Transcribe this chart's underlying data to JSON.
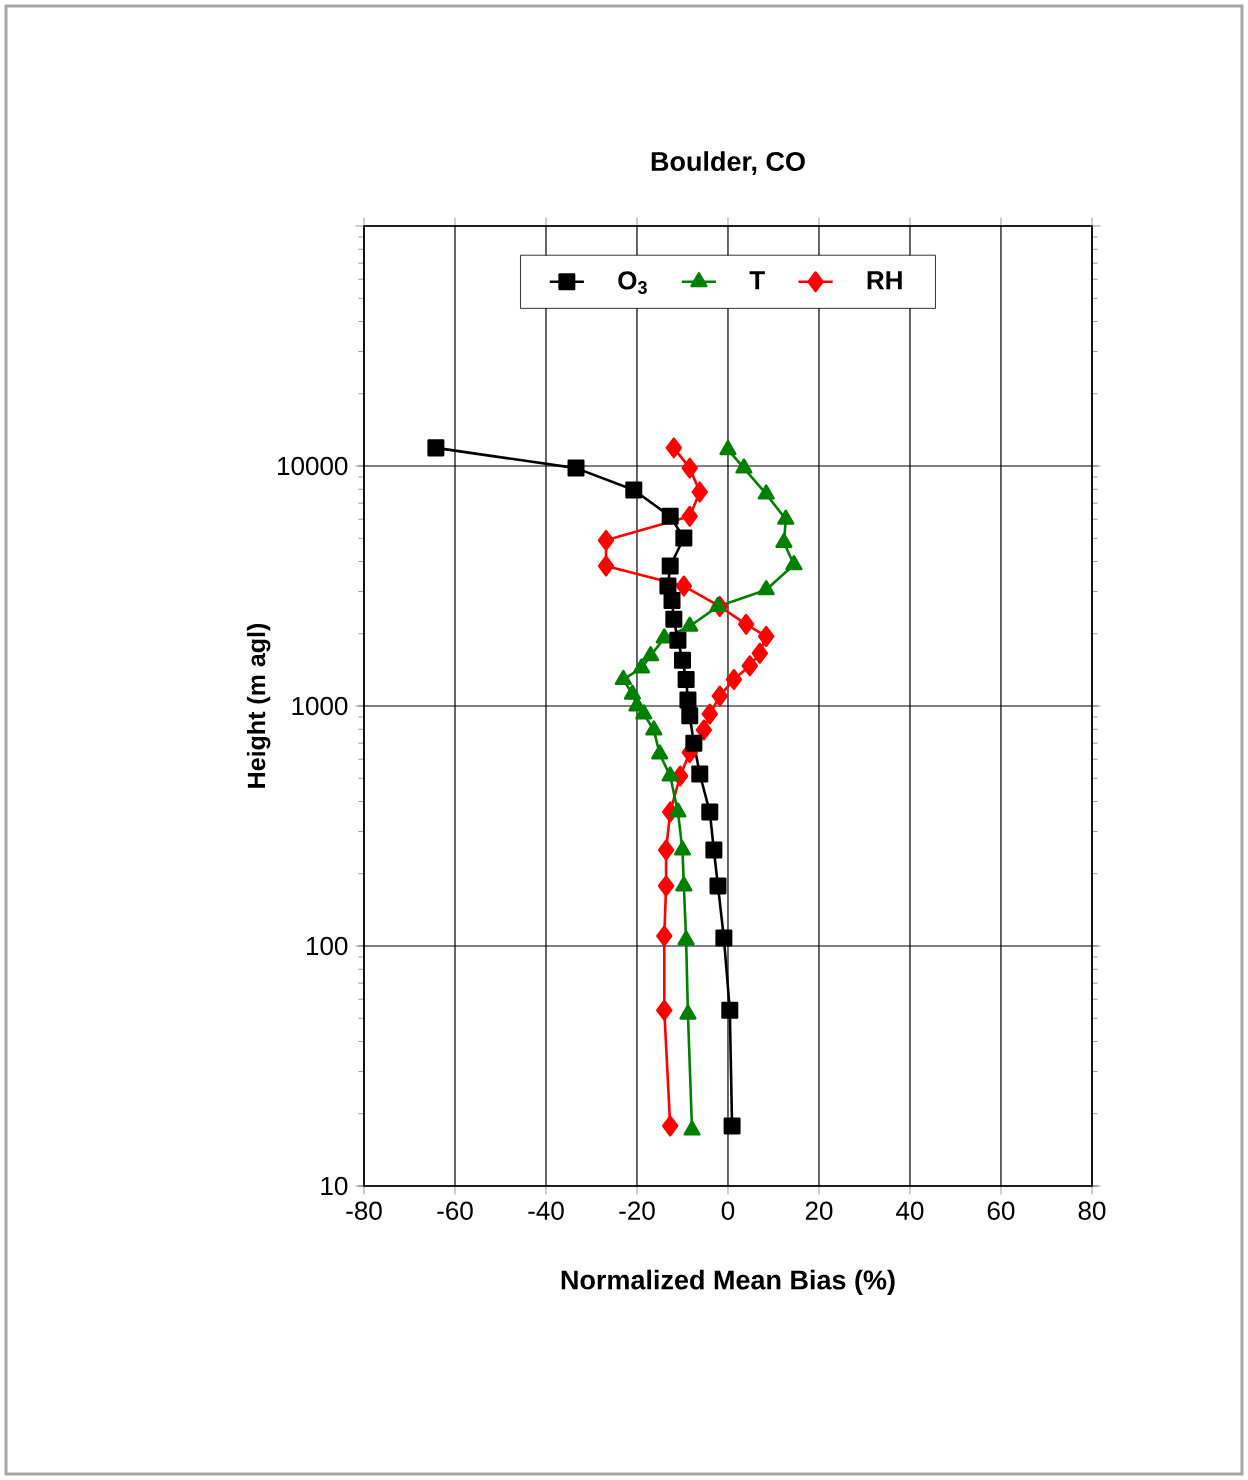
{
  "chart_data": {
    "type": "line",
    "title": "Boulder, CO",
    "xlabel": "Normalized Mean Bias (%)",
    "ylabel": "Height (m agl)",
    "log": "y",
    "grid": true,
    "legend": "top",
    "line_style": "solid",
    "xlim": [
      -80,
      80
    ],
    "xticks": [
      -80,
      -60,
      -40,
      -20,
      0,
      20,
      40,
      60,
      80
    ],
    "ylim": [
      10,
      100000
    ],
    "yticks": [
      10,
      100,
      1000,
      10000,
      {
        "value": 100000,
        "label": null
      }
    ],
    "series": [
      {
        "name": "O$_{3}$",
        "color": "#000000",
        "marker": "square",
        "x": [
          -64.2,
          -33.4,
          -20.7,
          -12.7,
          -9.7,
          -12.7,
          -13.2,
          -12.3,
          -11.9,
          -11,
          -10,
          -9.2,
          -8.8,
          -8.4,
          -7.5,
          -6.2,
          -4,
          -3.1,
          -2.2,
          -0.9,
          0.4,
          0.9
        ],
        "values": [
          11900,
          9800,
          7940,
          6170,
          5010,
          3830,
          3160,
          2750,
          2300,
          1880,
          1550,
          1290,
          1060,
          910,
          700,
          521,
          362,
          251,
          178,
          108,
          54,
          17.8
        ]
      },
      {
        "name": "T",
        "color": "#008000",
        "marker": "triangle",
        "x": [
          0,
          3.5,
          8.4,
          12.7,
          12.3,
          14.5,
          8.4,
          -2.2,
          -8.4,
          -14,
          -17,
          -19,
          -23,
          -21,
          -20,
          -18.5,
          -16.3,
          -15,
          -12.7,
          -11,
          -10,
          -9.7,
          -9.2,
          -8.8,
          -7.9
        ],
        "values": [
          11700,
          9800,
          7640,
          6000,
          4800,
          3880,
          3050,
          2600,
          2150,
          1920,
          1620,
          1440,
          1290,
          1120,
          1000,
          926,
          794,
          631,
          511,
          362,
          251,
          178,
          106,
          52,
          17.1
        ]
      },
      {
        "name": "RH",
        "color": "#ff0000",
        "marker": "diamond",
        "x": [
          -11.9,
          -8.4,
          -6.2,
          -8.4,
          -26.8,
          -26.8,
          -9.7,
          -1.8,
          4,
          8.4,
          7,
          4.8,
          1.3,
          -1.8,
          -4,
          -5.3,
          -8.4,
          -10.5,
          -12.7,
          -13.6,
          -13.6,
          -14,
          -14,
          -12.7
        ],
        "values": [
          11900,
          9800,
          7800,
          6170,
          4900,
          3830,
          3160,
          2600,
          2190,
          1950,
          1660,
          1470,
          1290,
          1100,
          926,
          794,
          640,
          511,
          362,
          251,
          178,
          110,
          54,
          17.8
        ]
      }
    ]
  }
}
